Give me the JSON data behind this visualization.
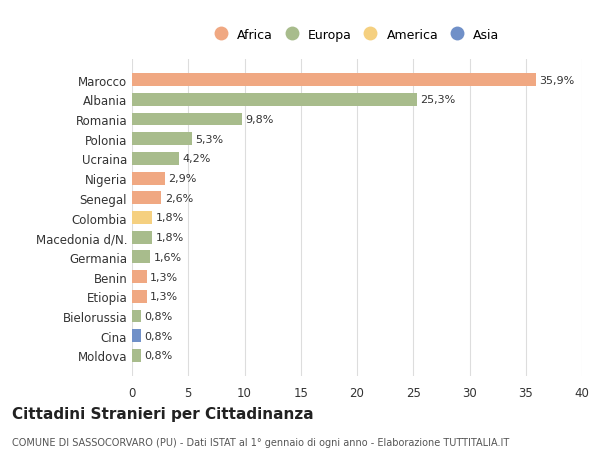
{
  "countries": [
    "Marocco",
    "Albania",
    "Romania",
    "Polonia",
    "Ucraina",
    "Nigeria",
    "Senegal",
    "Colombia",
    "Macedonia d/N.",
    "Germania",
    "Benin",
    "Etiopia",
    "Bielorussia",
    "Cina",
    "Moldova"
  ],
  "values": [
    35.9,
    25.3,
    9.8,
    5.3,
    4.2,
    2.9,
    2.6,
    1.8,
    1.8,
    1.6,
    1.3,
    1.3,
    0.8,
    0.8,
    0.8
  ],
  "labels": [
    "35,9%",
    "25,3%",
    "9,8%",
    "5,3%",
    "4,2%",
    "2,9%",
    "2,6%",
    "1,8%",
    "1,8%",
    "1,6%",
    "1,3%",
    "1,3%",
    "0,8%",
    "0,8%",
    "0,8%"
  ],
  "continents": [
    "Africa",
    "Europa",
    "Europa",
    "Europa",
    "Europa",
    "Africa",
    "Africa",
    "America",
    "Europa",
    "Europa",
    "Africa",
    "Africa",
    "Europa",
    "Asia",
    "Europa"
  ],
  "continent_colors": {
    "Africa": "#F0A882",
    "Europa": "#A8BC8C",
    "America": "#F5D080",
    "Asia": "#7090C8"
  },
  "legend_order": [
    "Africa",
    "Europa",
    "America",
    "Asia"
  ],
  "title": "Cittadini Stranieri per Cittadinanza",
  "subtitle": "COMUNE DI SASSOCORVARO (PU) - Dati ISTAT al 1° gennaio di ogni anno - Elaborazione TUTTITALIA.IT",
  "xlim": [
    0,
    40
  ],
  "xticks": [
    0,
    5,
    10,
    15,
    20,
    25,
    30,
    35,
    40
  ],
  "bg_color": "#FFFFFF",
  "grid_color": "#DDDDDD"
}
